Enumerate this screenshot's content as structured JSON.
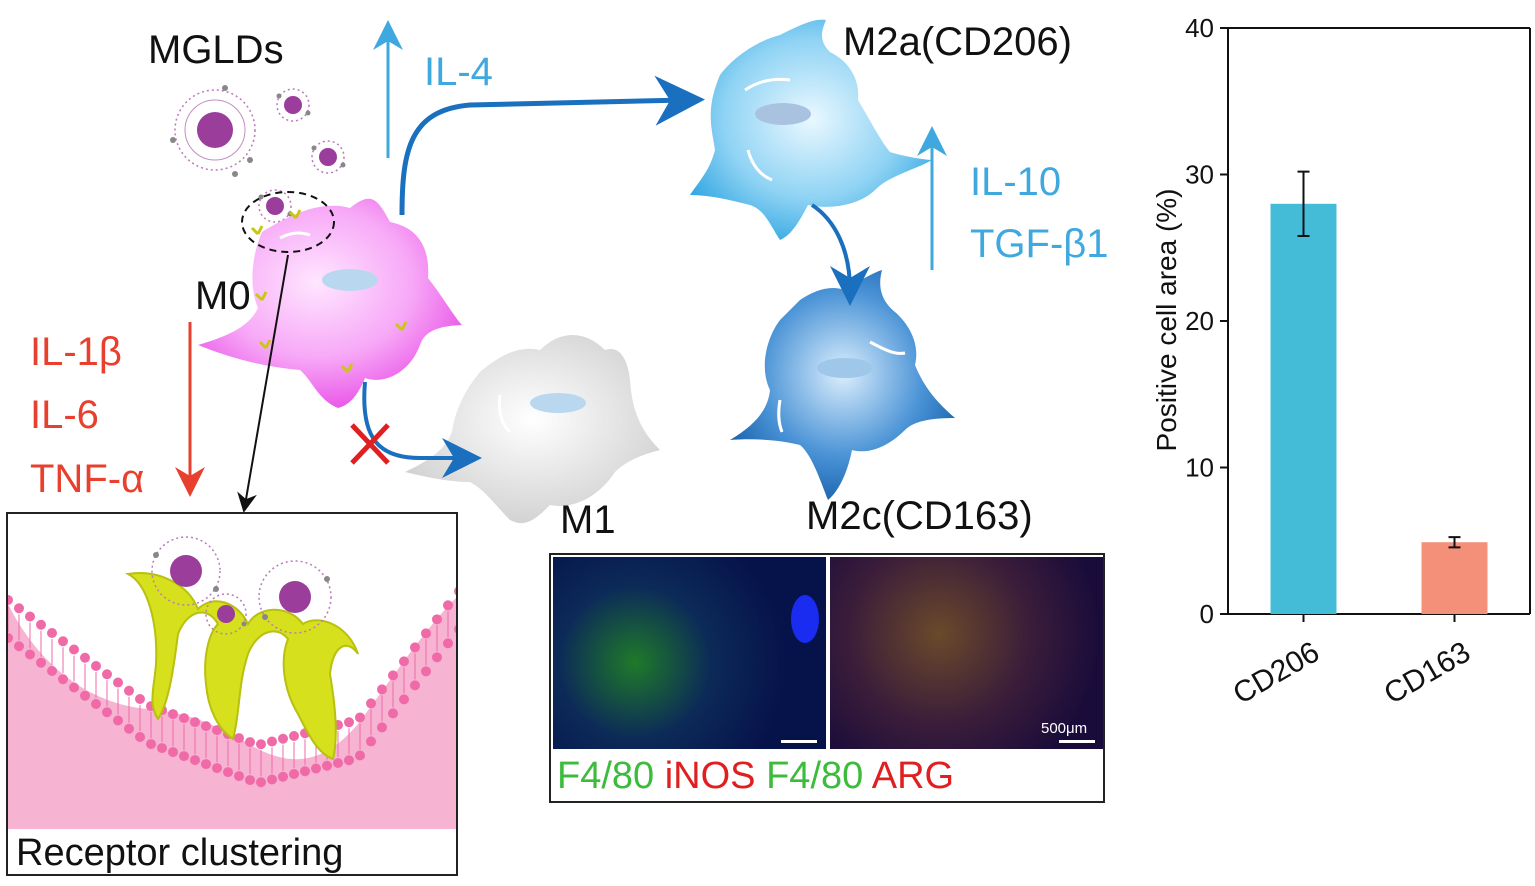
{
  "labels": {
    "mglds": "MGLDs",
    "m0": "M0",
    "m1": "M1",
    "m2a": "M2a(CD206)",
    "m2c": "M2c(CD163)",
    "il4": "IL-4",
    "il10": "IL-10",
    "tgfb1": "TGF-β1",
    "il1b": "IL-1β",
    "il6": "IL-6",
    "tnfa": "TNF-α",
    "receptor_clustering": "Receptor clustering"
  },
  "micrograph": {
    "stain_f480_1": "F4/80",
    "stain_inos": "iNOS",
    "stain_f480_2": "F4/80",
    "stain_arg": "ARG",
    "scale_bar": "500μm"
  },
  "colors": {
    "m0_cell": "#f07ef0",
    "m1_cell": "#d9d9d9",
    "m2a_cell": "#3fb2e6",
    "m2c_cell": "#1f6fb8",
    "upregulated_text": "#3fa9df",
    "downregulated_text": "#e8402e",
    "membrane": "#f06aa8",
    "receptor": "#d6e01c",
    "nanoparticle": "#9b3d9b"
  },
  "chart_data": {
    "type": "bar",
    "categories": [
      "CD206",
      "CD163"
    ],
    "values": [
      28.0,
      4.9
    ],
    "errors": [
      2.2,
      0.35
    ],
    "colors": [
      "#44bcd8",
      "#f4907a"
    ],
    "title": "",
    "xlabel": "",
    "ylabel": "Positive cell area (%)",
    "ylim": [
      0,
      40
    ],
    "yticks": [
      0,
      10,
      20,
      30,
      40
    ],
    "grid": false
  }
}
